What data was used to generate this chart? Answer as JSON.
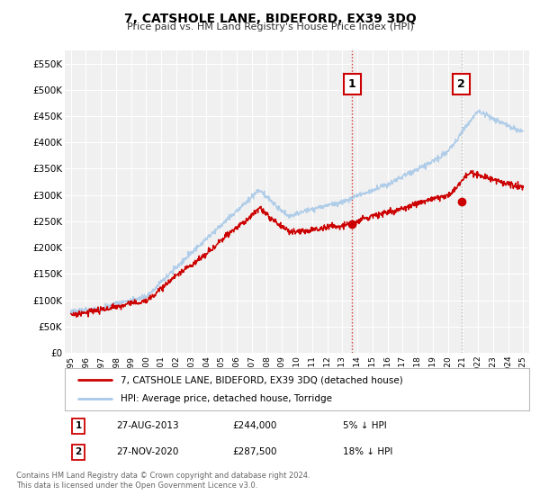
{
  "title": "7, CATSHOLE LANE, BIDEFORD, EX39 3DQ",
  "subtitle": "Price paid vs. HM Land Registry's House Price Index (HPI)",
  "ylim": [
    0,
    575000
  ],
  "yticks": [
    0,
    50000,
    100000,
    150000,
    200000,
    250000,
    300000,
    350000,
    400000,
    450000,
    500000,
    550000
  ],
  "ytick_labels": [
    "£0",
    "£50K",
    "£100K",
    "£150K",
    "£200K",
    "£250K",
    "£300K",
    "£350K",
    "£400K",
    "£450K",
    "£500K",
    "£550K"
  ],
  "hpi_color": "#a8c8e8",
  "price_color": "#cc0000",
  "bg_color": "#ffffff",
  "plot_bg_color": "#f0f0f0",
  "grid_color": "#ffffff",
  "ann1_x_year": 2013.65,
  "ann1_price_y": 244000,
  "ann1_label": "1",
  "ann1_date": "27-AUG-2013",
  "ann1_price": "£244,000",
  "ann1_pct": "5% ↓ HPI",
  "ann2_x_year": 2020.9,
  "ann2_price_y": 287500,
  "ann2_label": "2",
  "ann2_date": "27-NOV-2020",
  "ann2_price": "£287,500",
  "ann2_pct": "18% ↓ HPI",
  "legend_price_label": "7, CATSHOLE LANE, BIDEFORD, EX39 3DQ (detached house)",
  "legend_hpi_label": "HPI: Average price, detached house, Torridge",
  "footer1": "Contains HM Land Registry data © Crown copyright and database right 2024.",
  "footer2": "This data is licensed under the Open Government Licence v3.0.",
  "vline1_color": "#cc0000",
  "vline2_color": "#aaaaaa",
  "xmin": 1994.6,
  "xmax": 2025.4
}
